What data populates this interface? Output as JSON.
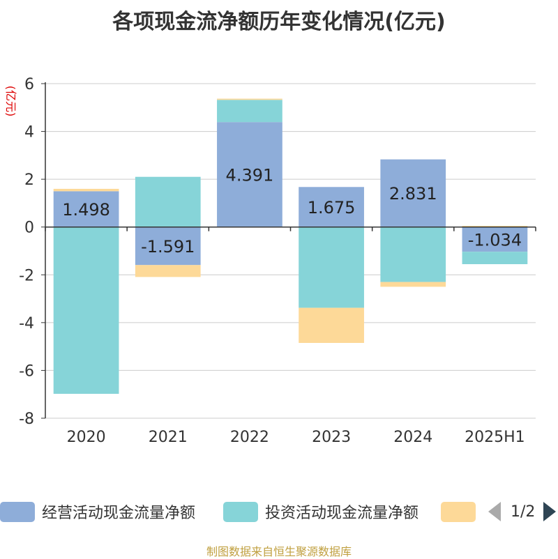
{
  "chart_data": {
    "type": "bar",
    "stacked": true,
    "title": "各项现金流净额历年变化情况(亿元)",
    "ylabel": "(亿元)",
    "xlabel": "",
    "categories": [
      "2020",
      "2021",
      "2022",
      "2023",
      "2024",
      "2025H1"
    ],
    "ylim": [
      -8,
      6
    ],
    "yticks": [
      6,
      4,
      2,
      0,
      -2,
      -4,
      -6,
      -8
    ],
    "grid": true,
    "legend_position": "bottom",
    "series": [
      {
        "name": "经营活动现金流量净额",
        "color": "#8eadd9",
        "values": [
          1.498,
          -1.591,
          4.391,
          1.675,
          2.831,
          -1.034
        ],
        "labels": [
          "1.498",
          "-1.591",
          "4.391",
          "1.675",
          "2.831",
          "-1.034"
        ]
      },
      {
        "name": "投资活动现金流量净额",
        "color": "#86d4d8",
        "values": [
          -6.98,
          2.1,
          0.93,
          -3.38,
          -2.3,
          -0.52
        ]
      },
      {
        "name": "",
        "color": "#fdd998",
        "values": [
          0.1,
          -0.5,
          0.05,
          -1.47,
          -0.2,
          0.05
        ]
      }
    ]
  },
  "legend": {
    "pager_text": "1/2"
  },
  "source": "制图数据来自恒生聚源数据库"
}
